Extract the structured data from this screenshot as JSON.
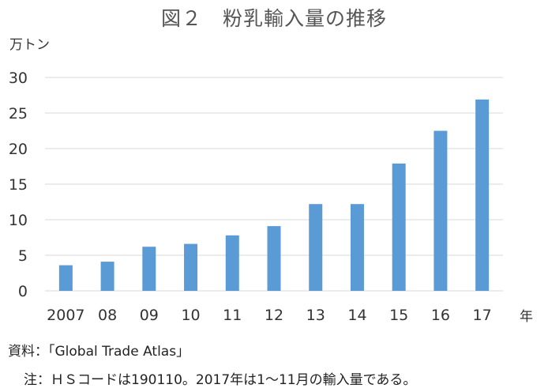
{
  "chart_data": {
    "type": "bar",
    "title": "図２　粉乳輸入量の推移",
    "ylabel": "万トン",
    "xlabel": "年",
    "categories": [
      "2007",
      "08",
      "09",
      "10",
      "11",
      "12",
      "13",
      "14",
      "15",
      "16",
      "17"
    ],
    "values": [
      3.6,
      4.1,
      6.2,
      6.6,
      7.8,
      9.1,
      12.2,
      12.2,
      17.9,
      22.5,
      26.9
    ],
    "ylim": [
      0,
      30
    ],
    "yticks": [
      "0",
      "5",
      "10",
      "15",
      "20",
      "25",
      "30"
    ],
    "grid": true,
    "legend": "none",
    "bar_color": "#5b9bd5",
    "grid_color": "#d9d9d9"
  },
  "notes": {
    "source": "資料：「Global Trade Atlas」",
    "footnote": "注：ＨＳコードは190110。2017年は1～11月の輸入量である。"
  }
}
